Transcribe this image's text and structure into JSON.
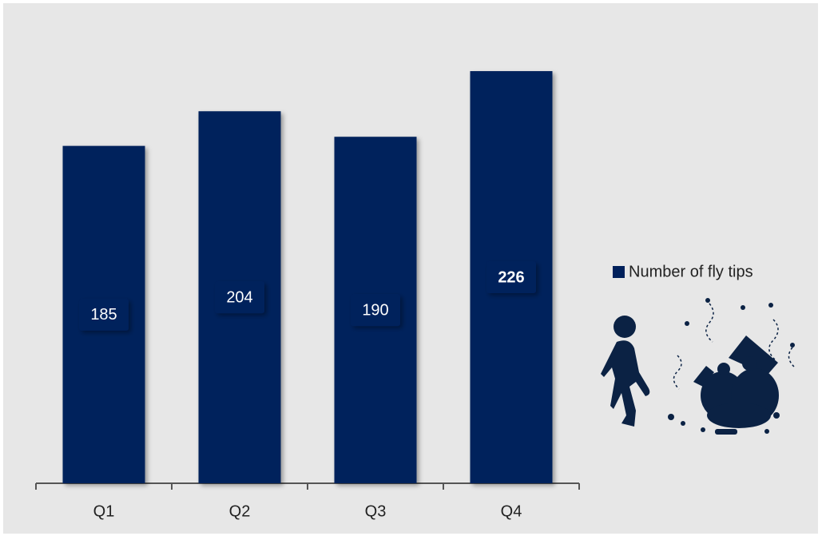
{
  "chart_data": {
    "type": "bar",
    "categories": [
      "Q1",
      "Q2",
      "Q3",
      "Q4"
    ],
    "values": [
      185,
      204,
      190,
      226
    ],
    "color": "#00205b",
    "legend": "Number of fly tips",
    "legend_position": "right"
  }
}
